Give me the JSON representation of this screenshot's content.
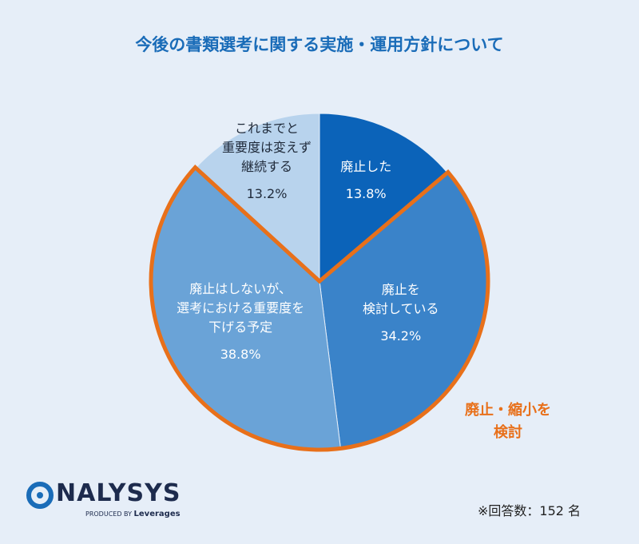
{
  "chart_data": {
    "type": "pie",
    "title": "今後の書類選考に関する実施・運用方針について",
    "categories": [
      "廃止した",
      "廃止を\n検討している",
      "廃止はしないが、\n選考における重要度を\n下げる予定",
      "これまでと\n重要度は変えず\n継続する"
    ],
    "values": [
      13.8,
      34.2,
      38.8,
      13.2
    ],
    "value_labels": [
      "13.8%",
      "34.2%",
      "38.8%",
      "13.2%"
    ],
    "colors": [
      "#0b63b9",
      "#3a83c9",
      "#6aa3d7",
      "#b8d3ed"
    ],
    "highlight": {
      "label": "廃止・縮小を\n検討",
      "color": "#e8701a"
    }
  },
  "footer": {
    "brand": "NALYSYS",
    "produced_by": "PRODUCED BY",
    "company": "Leverages",
    "note": "※回答数：152 名"
  }
}
